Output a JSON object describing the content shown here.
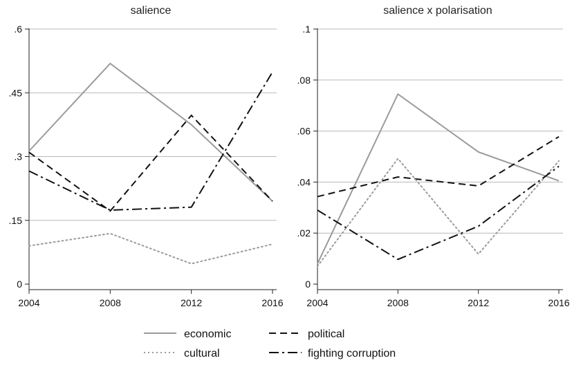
{
  "chart_data": [
    {
      "type": "line",
      "title": "salience",
      "xlabel": "",
      "ylabel": "",
      "categories": [
        "2004",
        "2008",
        "2012",
        "2016"
      ],
      "x": [
        2004,
        2008,
        2012,
        2016
      ],
      "xlim": [
        2004,
        2016
      ],
      "ylim": [
        0,
        0.6
      ],
      "yticks": [
        0,
        0.15,
        0.3,
        0.45,
        0.6
      ],
      "ytick_labels": [
        "0",
        ".15",
        ".3",
        ".45",
        ".6"
      ],
      "grid": true,
      "series": [
        {
          "name": "economic",
          "values": [
            0.313,
            0.519,
            0.375,
            0.195
          ]
        },
        {
          "name": "political",
          "values": [
            0.31,
            0.172,
            0.397,
            0.195
          ]
        },
        {
          "name": "cultural",
          "values": [
            0.09,
            0.119,
            0.048,
            0.094
          ]
        },
        {
          "name": "fighting corruption",
          "values": [
            0.266,
            0.174,
            0.181,
            0.499
          ]
        }
      ]
    },
    {
      "type": "line",
      "title": "salience x polarisation",
      "xlabel": "",
      "ylabel": "",
      "categories": [
        "2004",
        "2008",
        "2012",
        "2016"
      ],
      "x": [
        2004,
        2008,
        2012,
        2016
      ],
      "xlim": [
        2004,
        2016
      ],
      "ylim": [
        0,
        0.1
      ],
      "yticks": [
        0,
        0.02,
        0.04,
        0.06,
        0.08,
        0.1
      ],
      "ytick_labels": [
        "0",
        ".02",
        ".04",
        ".06",
        ".08",
        ".1"
      ],
      "grid": true,
      "series": [
        {
          "name": "economic",
          "values": [
            0.008,
            0.0745,
            0.0518,
            0.0405
          ]
        },
        {
          "name": "political",
          "values": [
            0.0343,
            0.042,
            0.0385,
            0.0578
          ]
        },
        {
          "name": "cultural",
          "values": [
            0.007,
            0.0492,
            0.0118,
            0.0483
          ]
        },
        {
          "name": "fighting corruption",
          "values": [
            0.029,
            0.0097,
            0.0227,
            0.0462
          ]
        }
      ]
    }
  ],
  "legend": {
    "placement": "bottom",
    "entries": [
      {
        "name": "economic",
        "color": "#9a9a9a",
        "style": "solid"
      },
      {
        "name": "political",
        "color": "#111111",
        "style": "dashed"
      },
      {
        "name": "cultural",
        "color": "#9a9a9a",
        "style": "dotted"
      },
      {
        "name": "fighting corruption",
        "color": "#111111",
        "style": "dashdot"
      }
    ]
  }
}
